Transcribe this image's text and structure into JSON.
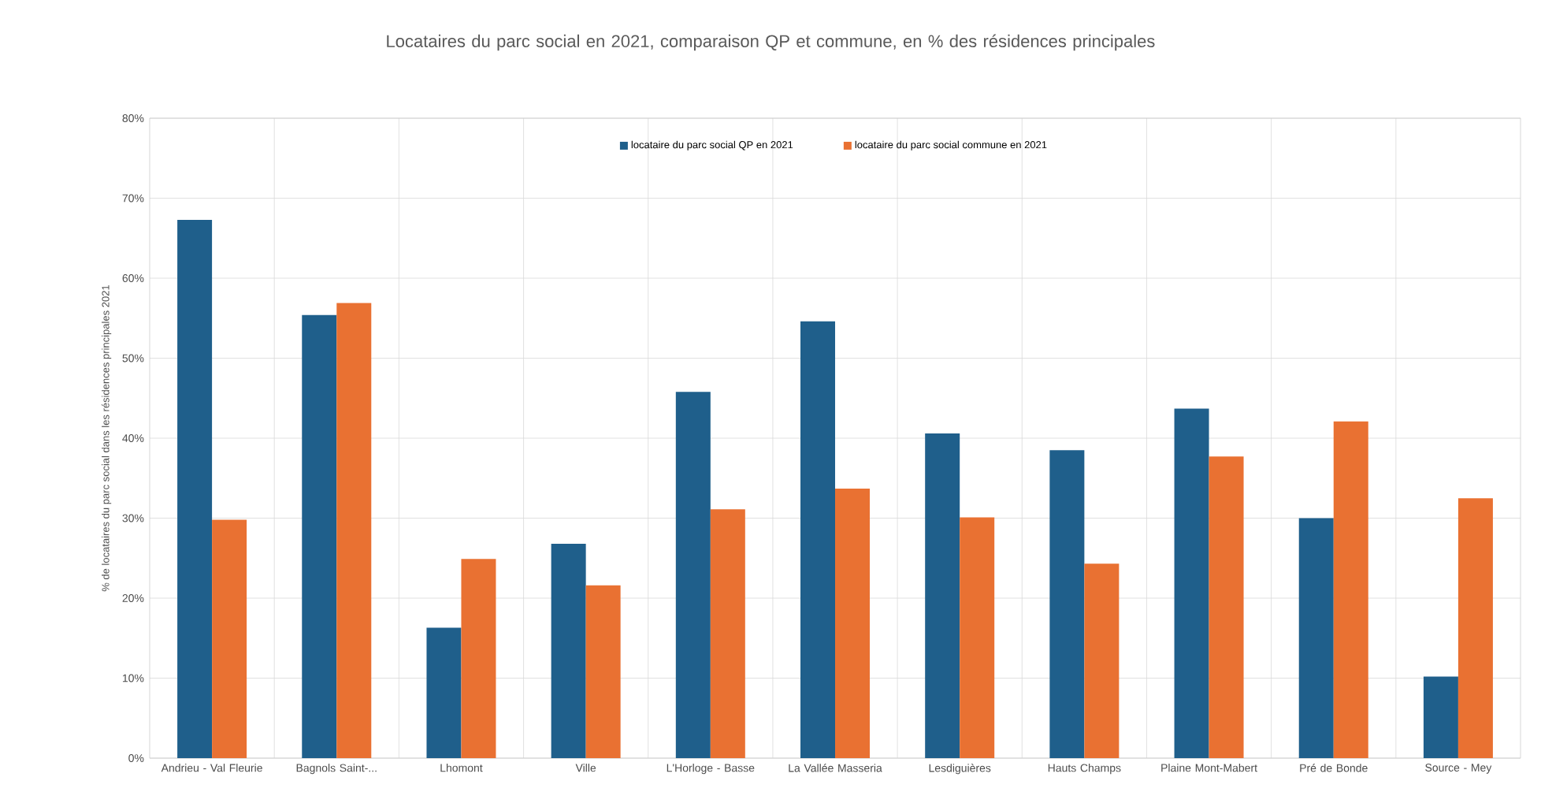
{
  "chart_data": {
    "type": "bar",
    "title": "Locataires du parc social en 2021, comparaison QP et commune, en % des résidences principales",
    "ylabel": "% de locataires du parc social dans les résidences principales 2021",
    "categories": [
      "Andrieu - Val Fleurie",
      "Bagnols Saint-...",
      "Lhomont",
      "Ville",
      "L'Horloge - Basse",
      "La Vallée Masseria",
      "Lesdiguières",
      "Hauts Champs",
      "Plaine Mont-Mabert",
      "Pré de Bonde",
      "Source - Mey"
    ],
    "series": [
      {
        "name": "locataire du parc social QP en 2021",
        "color": "#1f5f8b",
        "values": [
          67.3,
          55.4,
          16.3,
          26.8,
          45.8,
          54.6,
          40.6,
          38.5,
          43.7,
          30.0,
          10.2
        ]
      },
      {
        "name": "locataire du parc social commune en 2021",
        "color": "#e97132",
        "values": [
          29.8,
          56.9,
          24.9,
          21.6,
          31.1,
          33.7,
          30.1,
          24.3,
          37.7,
          42.1,
          32.5
        ]
      }
    ],
    "ylim": [
      0,
      80
    ],
    "yticks": [
      {
        "value": 0,
        "label": "0%"
      },
      {
        "value": 10,
        "label": "10%"
      },
      {
        "value": 20,
        "label": "20%"
      },
      {
        "value": 30,
        "label": "30%"
      },
      {
        "value": 40,
        "label": "40%"
      },
      {
        "value": 50,
        "label": "50%"
      },
      {
        "value": 60,
        "label": "60%"
      },
      {
        "value": 70,
        "label": "70%"
      },
      {
        "value": 80,
        "label": "80%"
      }
    ],
    "grid": true,
    "legend": "top"
  }
}
